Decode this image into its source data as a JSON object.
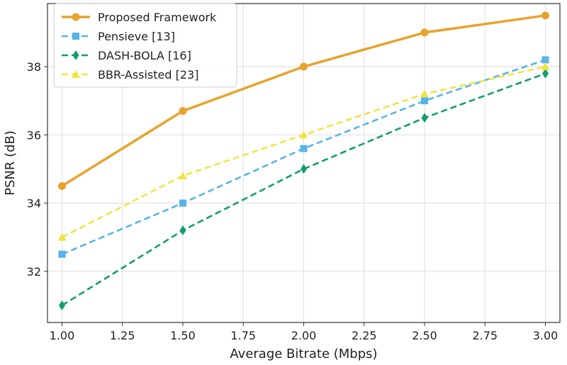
{
  "chart_data": {
    "type": "line",
    "title": "",
    "xlabel": "Average Bitrate (Mbps)",
    "ylabel": "PSNR (dB)",
    "xlim": [
      0.94,
      3.06
    ],
    "ylim": [
      30.5,
      39.85
    ],
    "xticks": [
      1.0,
      1.25,
      1.5,
      1.75,
      2.0,
      2.25,
      2.5,
      2.75,
      3.0
    ],
    "xtick_labels": [
      "1.00",
      "1.25",
      "1.50",
      "1.75",
      "2.00",
      "2.25",
      "2.50",
      "2.75",
      "3.00"
    ],
    "yticks": [
      32,
      34,
      36,
      38
    ],
    "ytick_labels": [
      "32",
      "34",
      "36",
      "38"
    ],
    "grid": true,
    "legend_position": "top-left",
    "x": [
      1.0,
      1.5,
      2.0,
      2.5,
      3.0
    ],
    "series": [
      {
        "name": "Proposed Framework",
        "values": [
          34.5,
          36.7,
          38.0,
          39.0,
          39.5
        ],
        "color": "#e8a22c",
        "dash": "solid",
        "marker": "circle"
      },
      {
        "name": "Pensieve [13]",
        "values": [
          32.5,
          34.0,
          35.6,
          37.0,
          38.2
        ],
        "color": "#56b4e9",
        "dash": "dashed",
        "marker": "square"
      },
      {
        "name": "DASH-BOLA [16]",
        "values": [
          31.0,
          33.2,
          35.0,
          36.5,
          37.8
        ],
        "color": "#129e6e",
        "dash": "dashed",
        "marker": "diamond"
      },
      {
        "name": "BBR-Assisted [23]",
        "values": [
          33.0,
          34.8,
          36.0,
          37.2,
          38.0
        ],
        "color": "#f0e442",
        "dash": "dashed",
        "marker": "triangle"
      }
    ]
  }
}
